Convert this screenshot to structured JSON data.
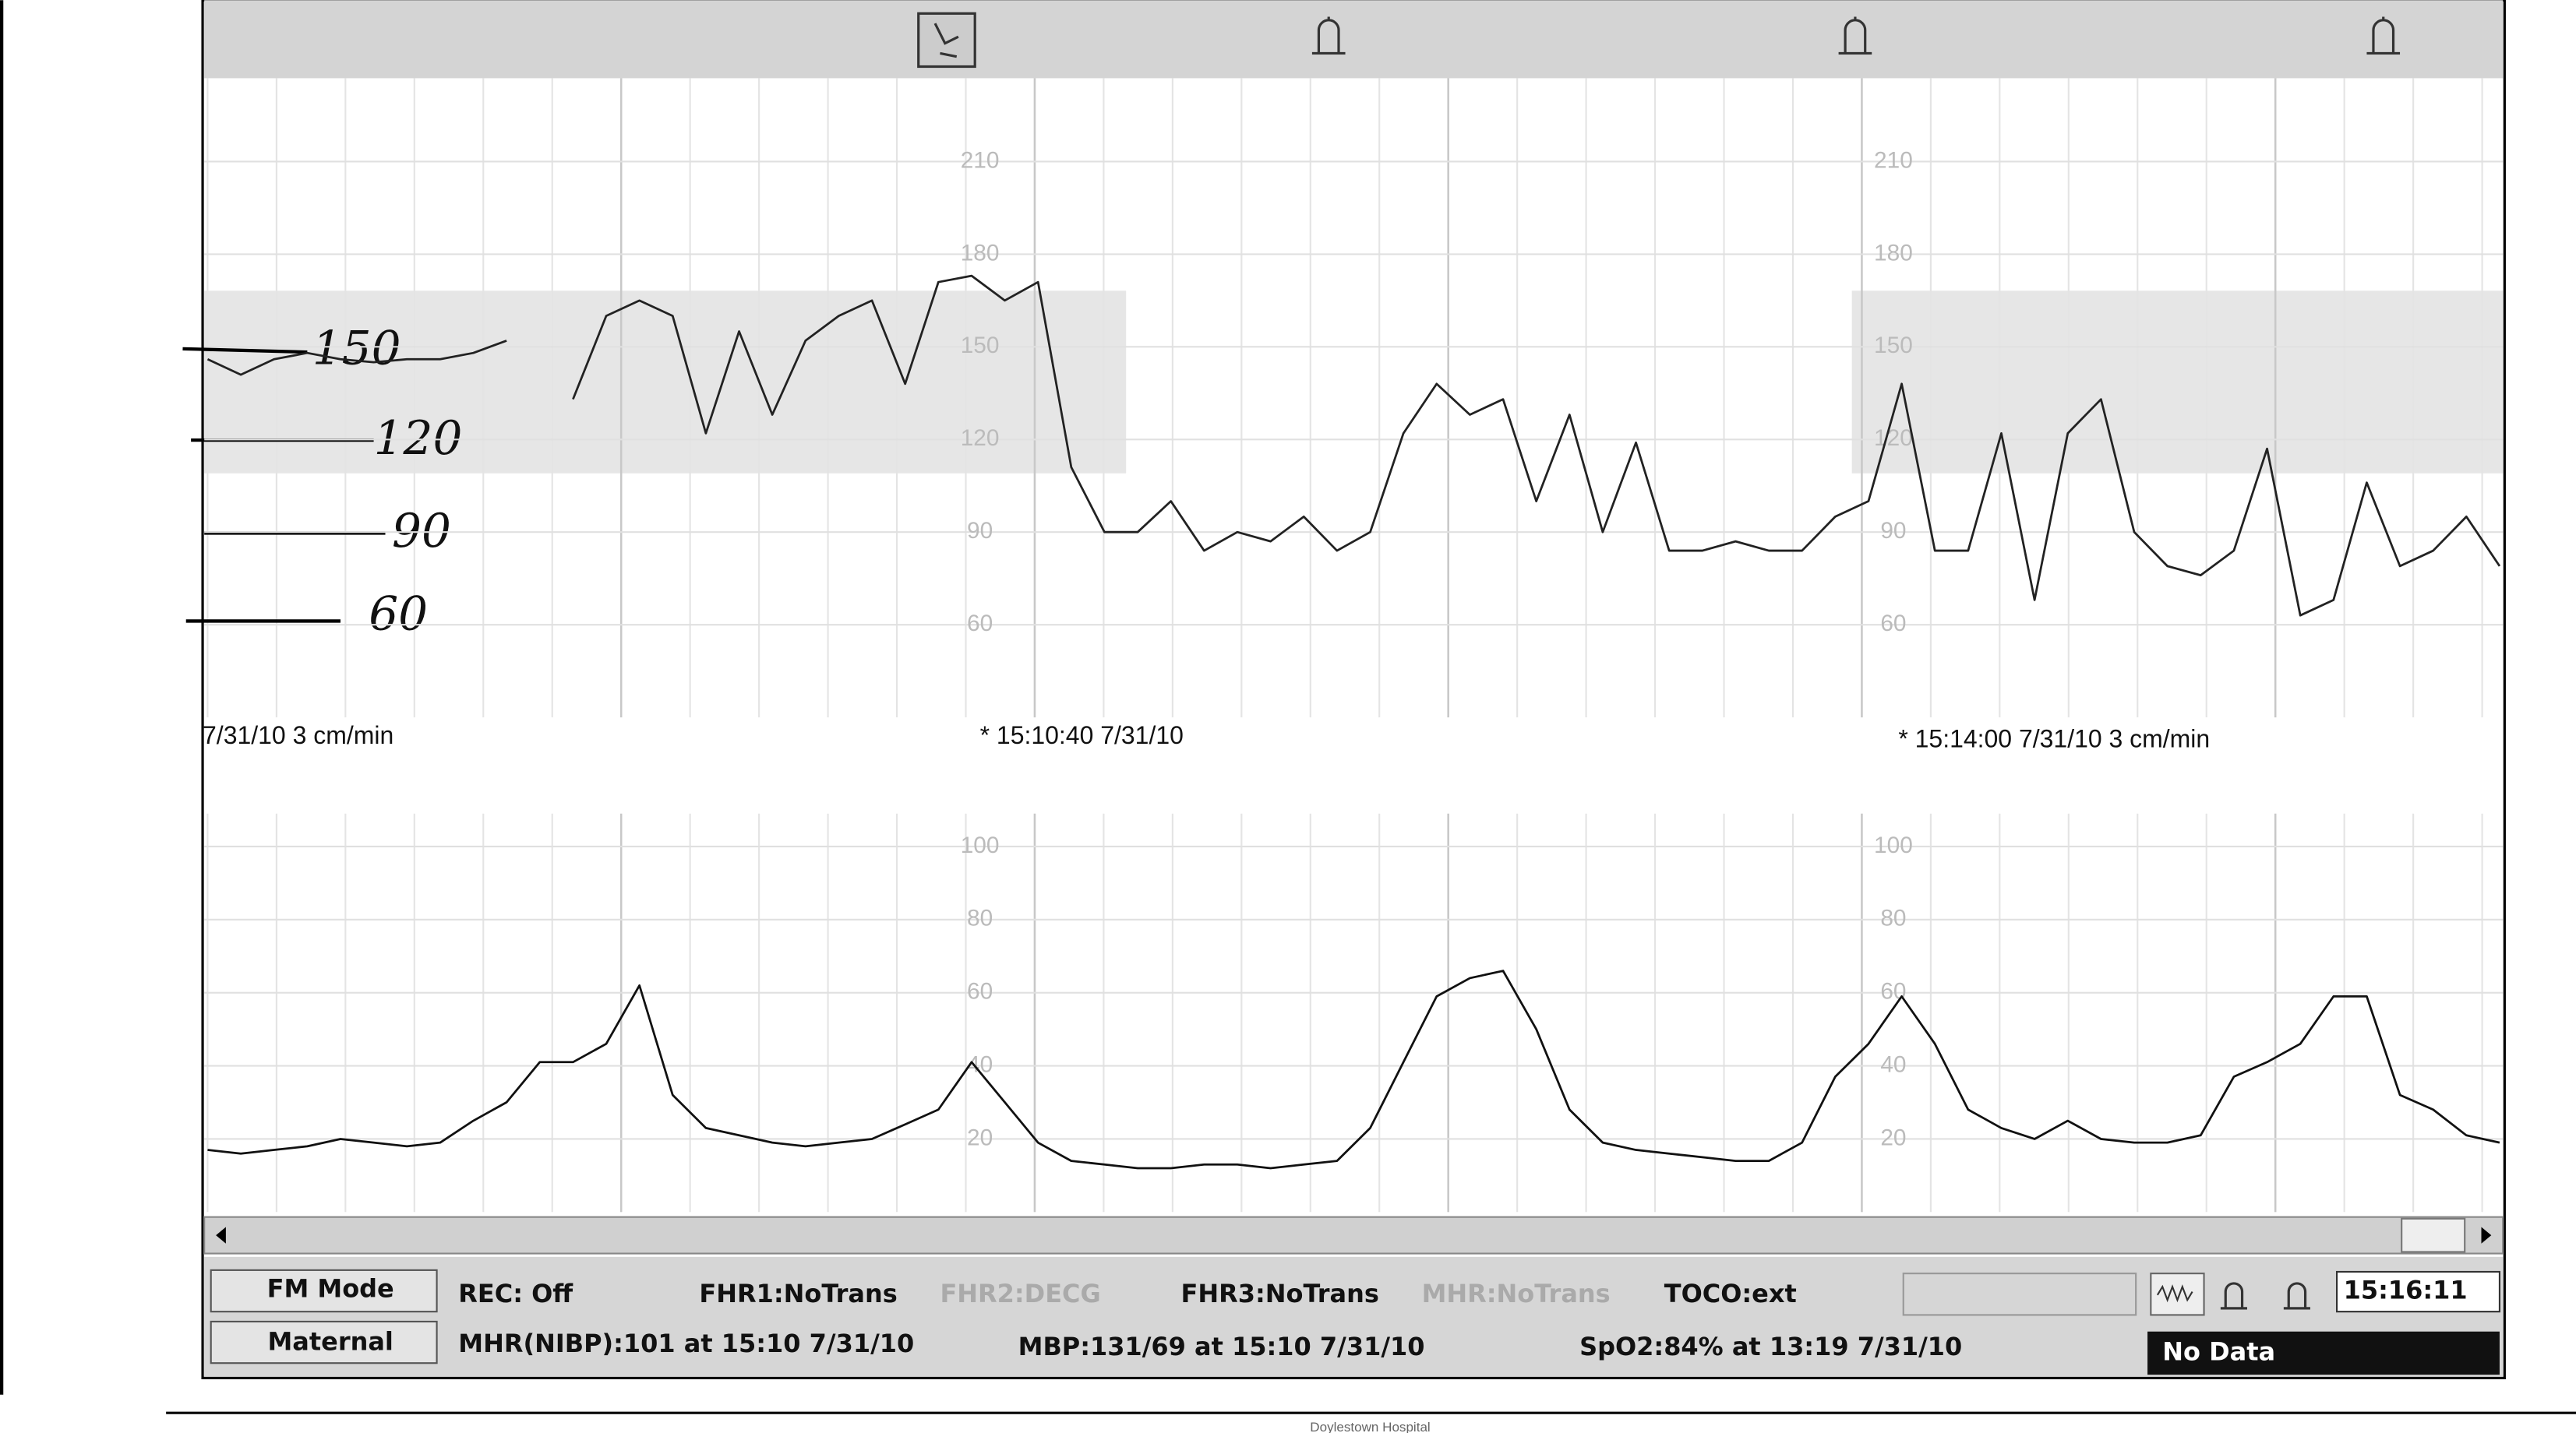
{
  "chart_data": [
    {
      "type": "line",
      "ylim": [
        30,
        237
      ],
      "yticks": [
        210,
        180,
        150,
        120,
        90,
        60
      ],
      "grid": true,
      "color": "#222",
      "values": [
        146,
        141,
        146,
        148,
        146,
        145,
        146,
        146,
        148,
        152,
        null,
        133,
        160,
        165,
        160,
        122,
        155,
        128,
        152,
        160,
        165,
        138,
        171,
        173,
        165,
        171,
        111,
        90,
        90,
        100,
        84,
        90,
        87,
        95,
        84,
        90,
        122,
        138,
        128,
        133,
        100,
        128,
        90,
        119,
        84,
        84,
        87,
        84,
        84,
        95,
        100,
        138,
        84,
        84,
        122,
        68,
        122,
        133,
        90,
        79,
        76,
        84,
        117,
        63,
        68,
        106,
        79,
        84,
        95,
        79
      ]
    },
    {
      "type": "line",
      "ylim": [
        0,
        109
      ],
      "yticks": [
        100,
        80,
        60,
        40,
        20
      ],
      "grid": true,
      "color": "#111",
      "values": [
        17,
        16,
        17,
        18,
        20,
        19,
        18,
        19,
        25,
        30,
        41,
        41,
        46,
        62,
        32,
        23,
        21,
        19,
        18,
        19,
        20,
        24,
        28,
        41,
        30,
        19,
        14,
        13,
        12,
        12,
        13,
        13,
        12,
        13,
        14,
        23,
        41,
        59,
        64,
        66,
        50,
        28,
        19,
        17,
        16,
        15,
        14,
        14,
        19,
        37,
        46,
        59,
        46,
        28,
        23,
        20,
        25,
        20,
        19,
        19,
        21,
        37,
        41,
        46,
        59,
        59,
        32,
        28,
        21,
        19
      ]
    }
  ],
  "time_labels": [
    "7/31/10  3 cm/min",
    "* 15:10:40 7/31/10",
    "* 15:14:00 7/31/10  3 cm/min"
  ],
  "annotations": [
    "150",
    "120",
    "90",
    "60"
  ],
  "status_bar": {
    "buttons": [
      "FM Mode",
      "Maternal"
    ],
    "row1": [
      "REC: Off",
      "FHR1:NoTrans",
      "FHR2:DECG",
      "FHR3:NoTrans",
      "MHR:NoTrans",
      "TOCO:ext"
    ],
    "clock": "15:16:11",
    "row2": [
      "MHR(NIBP):101 at 15:10 7/31/10",
      "MBP:131/69 at 15:10 7/31/10",
      "SpO2:84% at 13:19 7/31/10"
    ],
    "no_data": "No Data"
  },
  "footer": "Doylestown Hospital"
}
